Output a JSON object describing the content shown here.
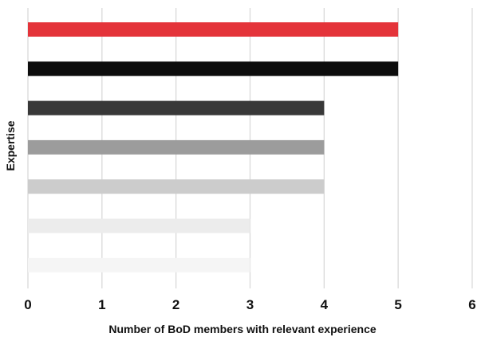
{
  "chart_data": {
    "type": "bar",
    "orientation": "horizontal",
    "xlabel": "Number of BoD members with relevant experience",
    "ylabel": "Expertise",
    "xlim": [
      0,
      6
    ],
    "xticks": [
      "0",
      "1",
      "2",
      "3",
      "4",
      "5",
      "6"
    ],
    "grid": true,
    "legend": "none",
    "values": [
      5,
      5,
      4,
      4,
      4,
      3,
      3
    ],
    "colors": [
      "#e4343a",
      "#0d0d0d",
      "#383838",
      "#9c9c9c",
      "#cccccc",
      "#ececec",
      "#f5f5f5"
    ]
  }
}
